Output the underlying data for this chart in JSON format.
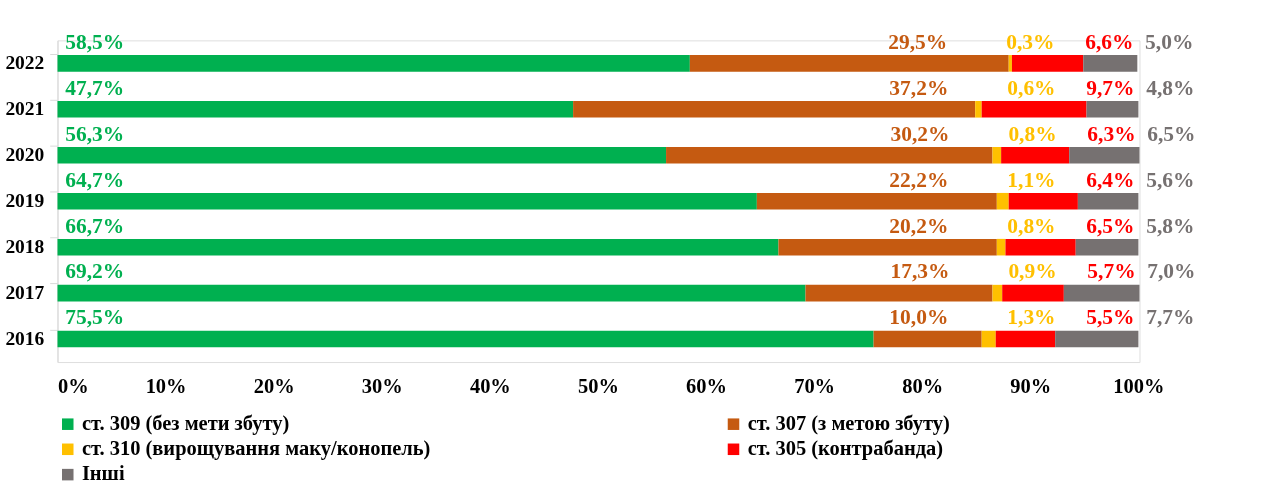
{
  "chart_data": {
    "type": "bar",
    "orientation": "horizontal",
    "stacked": true,
    "categories": [
      "2022",
      "2021",
      "2020",
      "2019",
      "2018",
      "2017",
      "2016"
    ],
    "series": [
      {
        "name": "ст. 309 (без мети збуту)",
        "color": "#00b050",
        "values": [
          58.5,
          47.7,
          56.3,
          64.7,
          66.7,
          69.2,
          75.5
        ],
        "value_labels": [
          "58,5%",
          "47,7%",
          "56,3%",
          "64,7%",
          "66,7%",
          "69,2%",
          "75,5%"
        ]
      },
      {
        "name": "ст. 307 (з метою збуту)",
        "color": "#c55a11",
        "values": [
          29.5,
          37.2,
          30.2,
          22.2,
          20.2,
          17.3,
          10.0
        ],
        "value_labels": [
          "29,5%",
          "37,2%",
          "30,2%",
          "22,2%",
          "20,2%",
          "17,3%",
          "10,0%"
        ]
      },
      {
        "name": "ст. 310 (вирощування маку/конопель)",
        "color": "#ffc000",
        "values": [
          0.3,
          0.6,
          0.8,
          1.1,
          0.8,
          0.9,
          1.3
        ],
        "value_labels": [
          "0,3%",
          "0,6%",
          "0,8%",
          "1,1%",
          "0,8%",
          "0,9%",
          "1,3%"
        ]
      },
      {
        "name": "ст. 305 (контрабанда)",
        "color": "#ff0000",
        "values": [
          6.6,
          9.7,
          6.3,
          6.4,
          6.5,
          5.7,
          5.5
        ],
        "value_labels": [
          "6,6%",
          "9,7%",
          "6,3%",
          "6,4%",
          "6,5%",
          "5,7%",
          "5,5%"
        ]
      },
      {
        "name": "Інші",
        "color": "#767171",
        "values": [
          5.0,
          4.8,
          6.5,
          5.6,
          5.8,
          7.0,
          7.7
        ],
        "value_labels": [
          "5,0%",
          "4,8%",
          "6,5%",
          "5,6%",
          "5,8%",
          "7,0%",
          "7,7%"
        ]
      }
    ],
    "xlim": [
      0,
      100.1
    ],
    "xticks": [
      {
        "value": 0,
        "label": "0%"
      },
      {
        "value": 10,
        "label": "10%"
      },
      {
        "value": 20,
        "label": "20%"
      },
      {
        "value": 30,
        "label": "30%"
      },
      {
        "value": 40,
        "label": "40%"
      },
      {
        "value": 50,
        "label": "50%"
      },
      {
        "value": 60,
        "label": "60%"
      },
      {
        "value": 70,
        "label": "70%"
      },
      {
        "value": 80,
        "label": "80%"
      },
      {
        "value": 90,
        "label": "90%"
      },
      {
        "value": 100,
        "label": "100%"
      }
    ],
    "grid": false,
    "legend": "bottom"
  }
}
